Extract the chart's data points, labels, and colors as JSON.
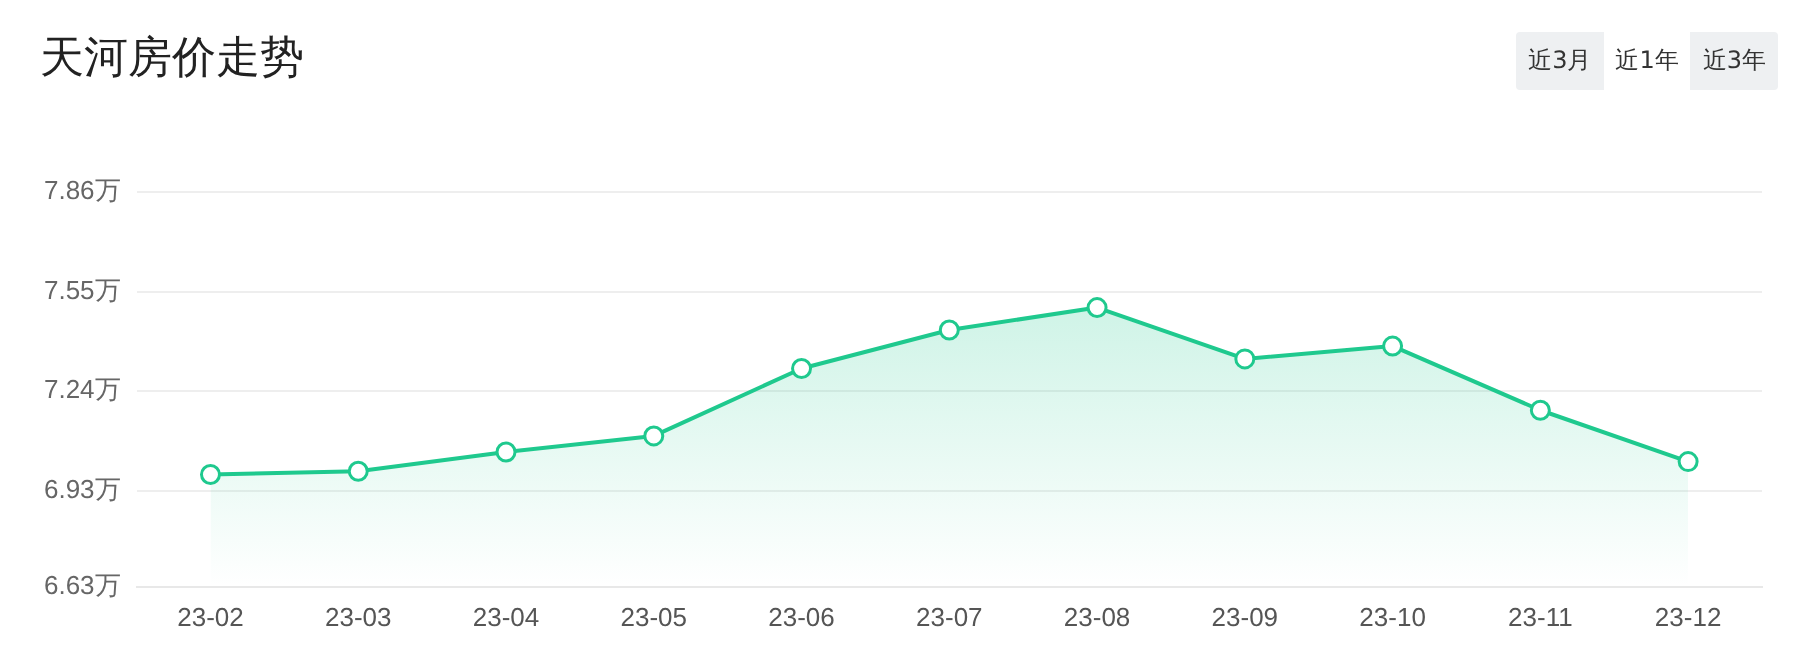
{
  "chart_data": {
    "type": "area",
    "title": "天河房价走势",
    "annotations": [
      "近3月",
      "近1年",
      "近3年"
    ],
    "categories": [
      "23-02",
      "23-03",
      "23-04",
      "23-05",
      "23-06",
      "23-07",
      "23-08",
      "23-09",
      "23-10",
      "23-11",
      "23-12"
    ],
    "series": [
      {
        "color": "#1fc98e",
        "values": [
          6.98,
          6.99,
          7.05,
          7.1,
          7.31,
          7.43,
          7.5,
          7.34,
          7.38,
          7.18,
          7.02
        ]
      }
    ],
    "ylim": [
      6.63,
      7.86
    ],
    "yticks": [
      {
        "value": 6.63,
        "label": "6.63万"
      },
      {
        "value": 6.93,
        "label": "6.93万"
      },
      {
        "value": 7.24,
        "label": "7.24万"
      },
      {
        "value": 7.55,
        "label": "7.55万"
      },
      {
        "value": 7.86,
        "label": "7.86万"
      }
    ],
    "grid": "y",
    "legend": false,
    "marker": "circle",
    "line_style": "solid"
  }
}
